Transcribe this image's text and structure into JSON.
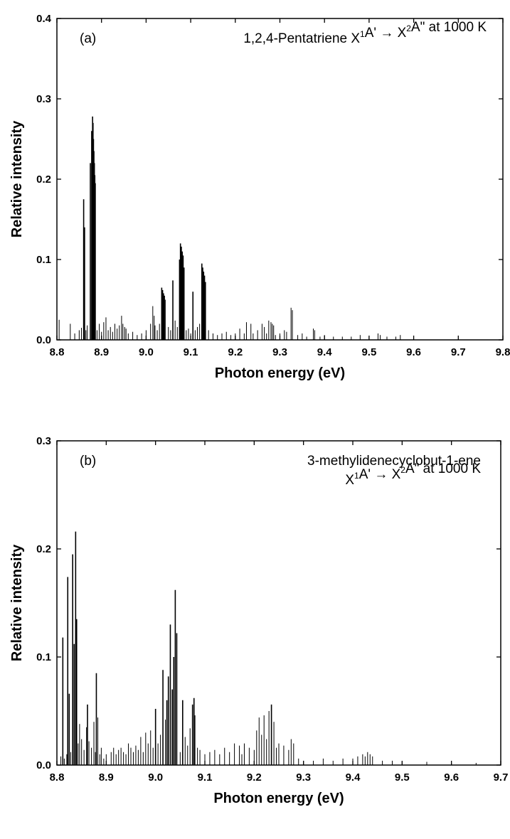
{
  "chart_data": [
    {
      "type": "bar",
      "panel_label": "(a)",
      "annotation": [
        "1,2,4-Pentatriene X¹A' → X²A\" at 1000 K"
      ],
      "annotation_parts": [
        [
          {
            "t": "1,2,4-Pentatriene X"
          },
          {
            "t": "1",
            "sup": true
          },
          {
            "t": "A' → X"
          },
          {
            "t": "2",
            "sup": true
          },
          {
            "t": "A\" at 1000 K"
          }
        ]
      ],
      "xlabel": "Photon energy (eV)",
      "ylabel": "Relative intensity",
      "xlim": [
        8.8,
        9.8
      ],
      "ylim": [
        0,
        0.4
      ],
      "xticks": [
        8.8,
        8.9,
        9.0,
        9.1,
        9.2,
        9.3,
        9.4,
        9.5,
        9.6,
        9.7,
        9.8
      ],
      "xtick_labels": [
        "8.8",
        "8.9",
        "9.0",
        "9.1",
        "9.2",
        "9.3",
        "9.4",
        "9.5",
        "9.6",
        "9.7",
        "9.8"
      ],
      "yticks": [
        0.0,
        0.1,
        0.2,
        0.3,
        0.4
      ],
      "ytick_labels": [
        "0.0",
        "0.1",
        "0.2",
        "0.3",
        "0.4"
      ],
      "grid": false,
      "x": [
        8.805,
        8.83,
        8.84,
        8.85,
        8.855,
        8.86,
        8.862,
        8.865,
        8.868,
        8.875,
        8.878,
        8.88,
        8.881,
        8.882,
        8.883,
        8.884,
        8.885,
        8.886,
        8.89,
        8.895,
        8.9,
        8.905,
        8.91,
        8.915,
        8.92,
        8.925,
        8.93,
        8.935,
        8.94,
        8.945,
        8.948,
        8.952,
        8.955,
        8.96,
        8.97,
        8.98,
        8.99,
        9.0,
        9.01,
        9.015,
        9.018,
        9.02,
        9.025,
        9.03,
        9.035,
        9.037,
        9.039,
        9.041,
        9.043,
        9.05,
        9.055,
        9.06,
        9.065,
        9.07,
        9.075,
        9.077,
        9.079,
        9.081,
        9.083,
        9.085,
        9.09,
        9.095,
        9.1,
        9.105,
        9.11,
        9.115,
        9.12,
        9.125,
        9.127,
        9.129,
        9.131,
        9.133,
        9.14,
        9.15,
        9.16,
        9.17,
        9.18,
        9.19,
        9.2,
        9.21,
        9.22,
        9.225,
        9.235,
        9.24,
        9.25,
        9.26,
        9.265,
        9.27,
        9.275,
        9.28,
        9.283,
        9.286,
        9.29,
        9.3,
        9.31,
        9.315,
        9.325,
        9.328,
        9.34,
        9.35,
        9.36,
        9.375,
        9.378,
        9.39,
        9.4,
        9.42,
        9.44,
        9.46,
        9.48,
        9.5,
        9.52,
        9.525,
        9.54,
        9.56,
        9.57
      ],
      "values": [
        0.025,
        0.02,
        0.008,
        0.012,
        0.015,
        0.175,
        0.14,
        0.012,
        0.018,
        0.22,
        0.26,
        0.278,
        0.27,
        0.25,
        0.235,
        0.22,
        0.205,
        0.195,
        0.012,
        0.02,
        0.01,
        0.022,
        0.028,
        0.012,
        0.016,
        0.01,
        0.02,
        0.014,
        0.018,
        0.03,
        0.02,
        0.016,
        0.014,
        0.008,
        0.01,
        0.006,
        0.008,
        0.012,
        0.02,
        0.042,
        0.03,
        0.018,
        0.012,
        0.02,
        0.065,
        0.062,
        0.058,
        0.055,
        0.05,
        0.016,
        0.012,
        0.074,
        0.024,
        0.016,
        0.1,
        0.12,
        0.116,
        0.11,
        0.105,
        0.09,
        0.012,
        0.014,
        0.008,
        0.06,
        0.012,
        0.016,
        0.02,
        0.095,
        0.09,
        0.085,
        0.08,
        0.072,
        0.012,
        0.008,
        0.006,
        0.008,
        0.01,
        0.006,
        0.008,
        0.014,
        0.008,
        0.022,
        0.02,
        0.008,
        0.012,
        0.02,
        0.016,
        0.008,
        0.024,
        0.022,
        0.02,
        0.018,
        0.006,
        0.008,
        0.012,
        0.01,
        0.04,
        0.037,
        0.006,
        0.008,
        0.004,
        0.014,
        0.012,
        0.004,
        0.006,
        0.004,
        0.004,
        0.004,
        0.006,
        0.004,
        0.008,
        0.006,
        0.004,
        0.004,
        0.006
      ]
    },
    {
      "type": "bar",
      "panel_label": "(b)",
      "annotation": [
        "3-methylidenecyclobut-1-ene",
        "X¹A' → X²A\" at 1000 K"
      ],
      "annotation_parts": [
        [
          {
            "t": "3-methylidenecyclobut-1-ene"
          }
        ],
        [
          {
            "t": "X"
          },
          {
            "t": "1",
            "sup": true
          },
          {
            "t": "A' → X"
          },
          {
            "t": "2",
            "sup": true
          },
          {
            "t": "A\" at 1000 K"
          }
        ]
      ],
      "xlabel": "Photon energy (eV)",
      "ylabel": "Relative intensity",
      "xlim": [
        8.8,
        9.7
      ],
      "ylim": [
        0,
        0.3
      ],
      "xticks": [
        8.8,
        8.9,
        9.0,
        9.1,
        9.2,
        9.3,
        9.4,
        9.5,
        9.6,
        9.7
      ],
      "xtick_labels": [
        "8.8",
        "8.9",
        "9.0",
        "9.1",
        "9.2",
        "9.3",
        "9.4",
        "9.5",
        "9.6",
        "9.7"
      ],
      "yticks": [
        0.0,
        0.1,
        0.2,
        0.3
      ],
      "ytick_labels": [
        "0.0",
        "0.1",
        "0.2",
        "0.3"
      ],
      "grid": false,
      "x": [
        8.808,
        8.812,
        8.815,
        8.82,
        8.822,
        8.825,
        8.828,
        8.832,
        8.835,
        8.838,
        8.84,
        8.843,
        8.846,
        8.85,
        8.855,
        8.86,
        8.862,
        8.865,
        8.87,
        8.875,
        8.878,
        8.88,
        8.883,
        8.887,
        8.89,
        8.895,
        8.9,
        8.91,
        8.915,
        8.92,
        8.925,
        8.93,
        8.935,
        8.94,
        8.945,
        8.95,
        8.955,
        8.96,
        8.965,
        8.97,
        8.975,
        8.98,
        8.985,
        8.99,
        8.995,
        9.0,
        9.005,
        9.01,
        9.015,
        9.02,
        9.023,
        9.026,
        9.03,
        9.034,
        9.037,
        9.04,
        9.043,
        9.05,
        9.055,
        9.06,
        9.065,
        9.07,
        9.075,
        9.078,
        9.08,
        9.085,
        9.09,
        9.1,
        9.11,
        9.12,
        9.13,
        9.14,
        9.15,
        9.16,
        9.17,
        9.175,
        9.18,
        9.19,
        9.2,
        9.205,
        9.21,
        9.215,
        9.22,
        9.225,
        9.23,
        9.235,
        9.24,
        9.245,
        9.25,
        9.26,
        9.27,
        9.275,
        9.28,
        9.29,
        9.3,
        9.32,
        9.34,
        9.36,
        9.38,
        9.4,
        9.41,
        9.42,
        9.425,
        9.43,
        9.435,
        9.44,
        9.46,
        9.48,
        9.5,
        9.55,
        9.6,
        9.65
      ],
      "values": [
        0.008,
        0.118,
        0.006,
        0.01,
        0.174,
        0.066,
        0.012,
        0.195,
        0.112,
        0.216,
        0.135,
        0.02,
        0.038,
        0.024,
        0.014,
        0.035,
        0.056,
        0.022,
        0.016,
        0.04,
        0.012,
        0.085,
        0.044,
        0.01,
        0.016,
        0.006,
        0.01,
        0.012,
        0.016,
        0.01,
        0.014,
        0.016,
        0.012,
        0.01,
        0.02,
        0.016,
        0.012,
        0.018,
        0.014,
        0.026,
        0.012,
        0.03,
        0.02,
        0.032,
        0.016,
        0.052,
        0.02,
        0.028,
        0.088,
        0.042,
        0.06,
        0.082,
        0.13,
        0.07,
        0.1,
        0.162,
        0.122,
        0.012,
        0.06,
        0.026,
        0.018,
        0.034,
        0.056,
        0.062,
        0.046,
        0.016,
        0.014,
        0.01,
        0.012,
        0.014,
        0.01,
        0.016,
        0.012,
        0.02,
        0.018,
        0.01,
        0.02,
        0.016,
        0.014,
        0.032,
        0.044,
        0.028,
        0.046,
        0.024,
        0.05,
        0.056,
        0.04,
        0.016,
        0.02,
        0.018,
        0.014,
        0.024,
        0.02,
        0.006,
        0.004,
        0.004,
        0.006,
        0.004,
        0.006,
        0.006,
        0.008,
        0.01,
        0.008,
        0.012,
        0.01,
        0.008,
        0.004,
        0.004,
        0.003,
        0.003,
        0.002,
        0.002
      ]
    }
  ]
}
